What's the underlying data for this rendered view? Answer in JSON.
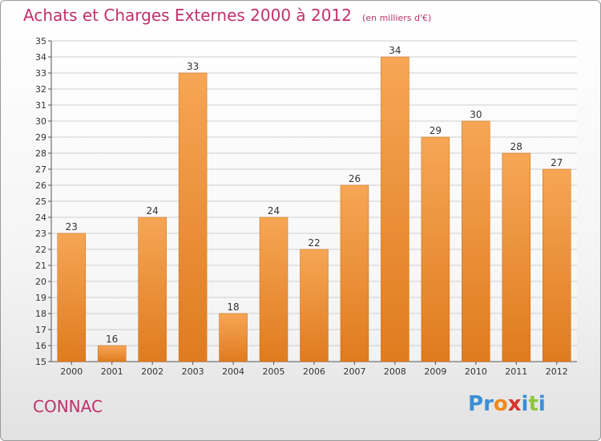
{
  "header": {
    "title": "Achats et Charges Externes 2000 à 2012",
    "subtitle": "(en milliers d'€)"
  },
  "commune": "CONNAC",
  "logo": {
    "letters": [
      "P",
      "r",
      "o",
      "x",
      "i",
      "t",
      "i"
    ],
    "colors": [
      "#3a8fd6",
      "#3a8fd6",
      "#f08a1c",
      "#d8342c",
      "#3a8fd6",
      "#8dc63f",
      "#3a8fd6"
    ]
  },
  "colors": {
    "bar_top": "#f6a655",
    "bar_bottom": "#e07b1f",
    "bar_edge": "#c96a14",
    "grid": "#cfcfcf",
    "text": "#333333",
    "accent": "#c0306a"
  },
  "chart_data": {
    "type": "bar",
    "categories": [
      "2000",
      "2001",
      "2002",
      "2003",
      "2004",
      "2005",
      "2006",
      "2007",
      "2008",
      "2009",
      "2010",
      "2011",
      "2012"
    ],
    "values": [
      23,
      16,
      24,
      33,
      18,
      24,
      22,
      26,
      34,
      29,
      30,
      28,
      27
    ],
    "ylim": [
      15,
      35
    ],
    "yticks": [
      15,
      16,
      17,
      18,
      19,
      20,
      21,
      22,
      23,
      24,
      25,
      26,
      27,
      28,
      29,
      30,
      31,
      32,
      33,
      34,
      35
    ],
    "grid": true
  }
}
